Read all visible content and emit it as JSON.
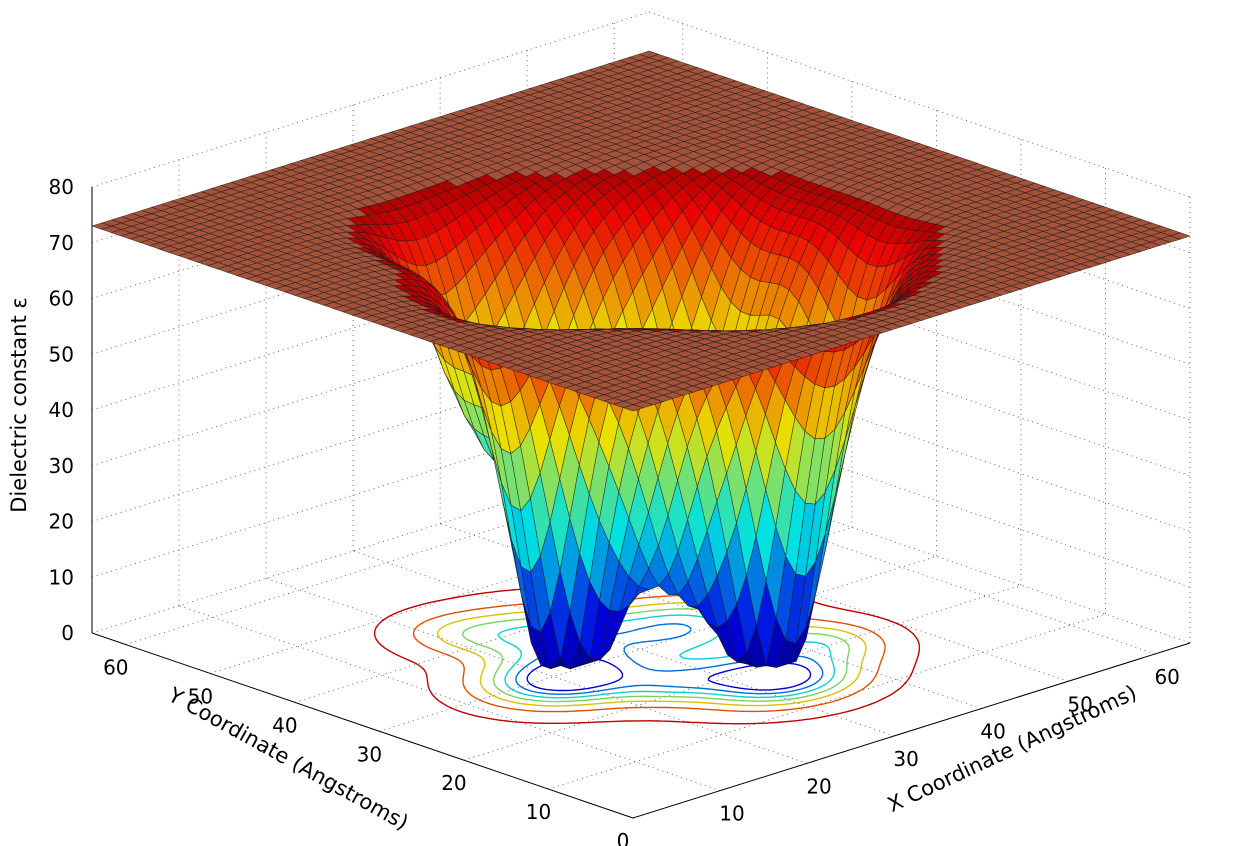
{
  "chart_data": {
    "type": "surface",
    "zlabel": "Dielectric constant ε",
    "xlabel": "X Coordinate (Angstroms)",
    "ylabel": "Y Coordinate (Angstroms)",
    "xlim": [
      0,
      64
    ],
    "ylim": [
      0,
      64
    ],
    "zlim": [
      0,
      80
    ],
    "x_ticks": [
      "10",
      "20",
      "30",
      "40",
      "50",
      "60"
    ],
    "y_ticks": [
      "0",
      "10",
      "20",
      "30",
      "40",
      "50",
      "60"
    ],
    "z_ticks": [
      "0",
      "10",
      "20",
      "30",
      "40",
      "50",
      "60",
      "70",
      "80"
    ],
    "plateau_value": 73,
    "minimum_value": 3,
    "grid": true,
    "colormap": "jet",
    "contour_levels": [
      10,
      20,
      30,
      40,
      50,
      60,
      70
    ],
    "colors": {
      "plateau": "#a4523a",
      "contour_low": "#2c2ca0",
      "contour_high": "#d8402a"
    }
  }
}
